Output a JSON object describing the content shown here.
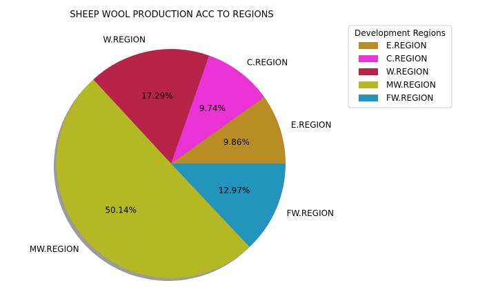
{
  "chart_data": {
    "type": "pie",
    "title": "SHEEP WOOL PRODUCTION ACC TO REGIONS",
    "slices": [
      {
        "label": "E.REGION",
        "percent": 9.86,
        "pct_text": "9.86%",
        "color": "#b88d23"
      },
      {
        "label": "C.REGION",
        "percent": 9.74,
        "pct_text": "9.74%",
        "color": "#ea33d4"
      },
      {
        "label": "W.REGION",
        "percent": 17.29,
        "pct_text": "17.29%",
        "color": "#b8234a"
      },
      {
        "label": "MW.REGION",
        "percent": 50.14,
        "pct_text": "50.14%",
        "color": "#b3b823"
      },
      {
        "label": "FW.REGION",
        "percent": 12.97,
        "pct_text": "12.97%",
        "color": "#2394bc"
      }
    ],
    "start_angle_deg": 0,
    "direction": "counterclockwise",
    "shadow": true,
    "legend": {
      "title": "Development Regions",
      "placement": "upper-right",
      "entries": [
        "E.REGION",
        "C.REGION",
        "W.REGION",
        "MW.REGION",
        "FW.REGION"
      ]
    }
  }
}
